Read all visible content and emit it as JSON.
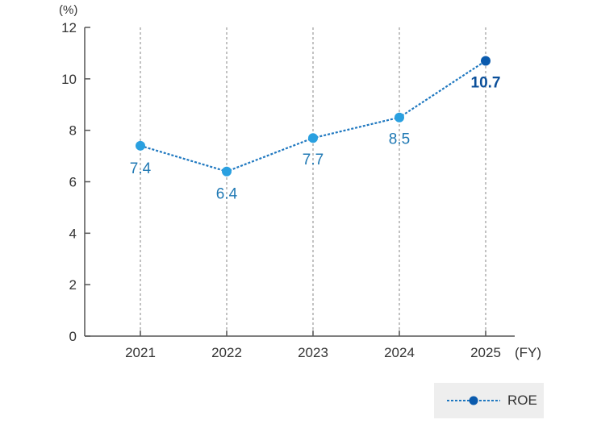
{
  "chart_data": {
    "type": "line",
    "unit_label": "(%)",
    "x_unit_label": "(FY)",
    "categories": [
      "2021",
      "2022",
      "2023",
      "2024",
      "2025"
    ],
    "series": [
      {
        "name": "ROE",
        "values": [
          7.4,
          6.4,
          7.7,
          8.5,
          10.7
        ],
        "labels": [
          "7.4",
          "6.4",
          "7.7",
          "8.5",
          "10.7"
        ]
      }
    ],
    "ylim": [
      0,
      12
    ],
    "yticks": [
      0,
      2,
      4,
      6,
      8,
      10,
      12
    ],
    "vertical_gridlines": "dotted",
    "legend_position": "bottom-right",
    "colors": {
      "line": "#1f78c0",
      "point": "#2aa0e0",
      "highlight_point": "#0a5aad",
      "label": "#2079b4",
      "highlight_label": "#0b4f9a",
      "axis": "#555555",
      "grid": "#9a9a9a",
      "legend_bg": "#eeeeee"
    }
  }
}
